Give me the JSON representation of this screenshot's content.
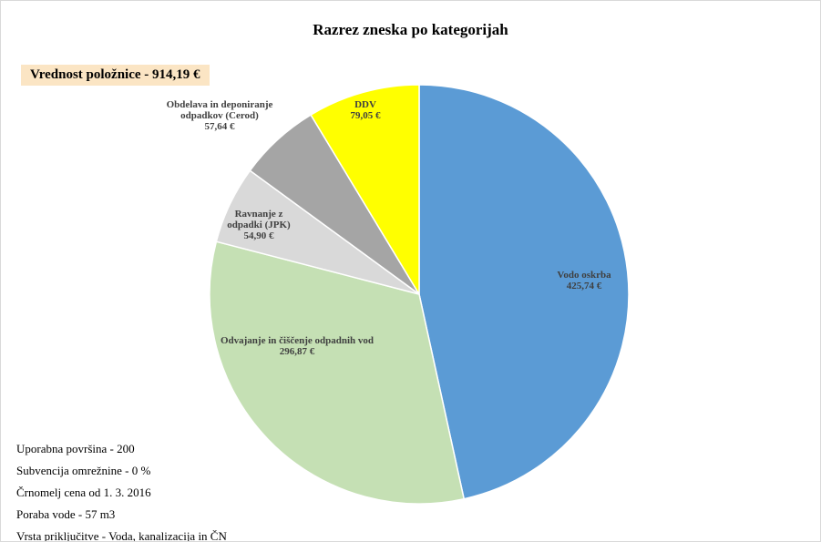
{
  "chart_data": {
    "type": "pie",
    "title": "Razrez zneska po kategorijah",
    "subtitle": "Vrednost položnice - 914,19 €",
    "categories": [
      "Vodo oskrba",
      "Odvajanje in čiščenje odpadnih vod",
      "Ravnanje z odpadki (JPK)",
      "Obdelava in deponiranje odpadkov (Cerod)",
      "DDV"
    ],
    "values": [
      425.74,
      296.87,
      54.9,
      57.64,
      79.05
    ],
    "value_labels": [
      "425,74 €",
      "296,87 €",
      "54,90 €",
      "57,64 €",
      "79,05 €"
    ],
    "colors": [
      "#5b9bd5",
      "#c5e0b4",
      "#d9d9d9",
      "#a5a5a5",
      "#ffff00"
    ],
    "notes": [
      "Uporabna površina - 200",
      "Subvencija omrežnine - 0 %",
      "Črnomelj cena od 1. 3. 2016",
      "Poraba vode - 57 m3",
      "Vrsta priključitve - Voda, kanalizacija in ČN"
    ]
  }
}
